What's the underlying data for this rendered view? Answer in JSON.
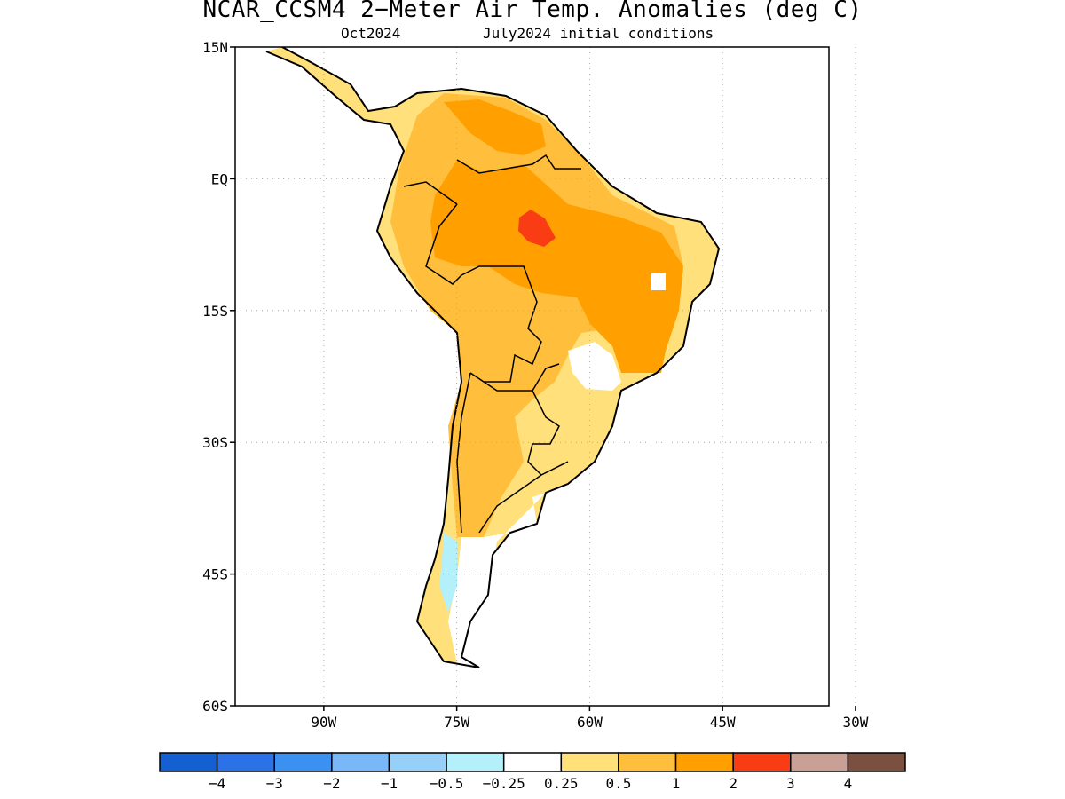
{
  "title": "NCAR_CCSM4 2−Meter Air Temp. Anomalies (deg C)",
  "subtitle_left": "Oct2024",
  "subtitle_right": "July2024 initial conditions",
  "map": {
    "region": "South America",
    "lon_range": [
      -100,
      -33
    ],
    "lat_range": [
      -60,
      15
    ],
    "x_ticks": [
      {
        "lon": -90,
        "label": "90W"
      },
      {
        "lon": -75,
        "label": "75W"
      },
      {
        "lon": -60,
        "label": "60W"
      },
      {
        "lon": -45,
        "label": "45W"
      },
      {
        "lon": -30,
        "label": "30W"
      }
    ],
    "y_ticks": [
      {
        "lat": 15,
        "label": "15N"
      },
      {
        "lat": 0,
        "label": "EQ"
      },
      {
        "lat": -15,
        "label": "15S"
      },
      {
        "lat": -30,
        "label": "30S"
      },
      {
        "lat": -45,
        "label": "45S"
      },
      {
        "lat": -60,
        "label": "60S"
      }
    ],
    "grid": "dotted"
  },
  "colorbar": {
    "colors": [
      "#1560d0",
      "#2a72e6",
      "#3c90f0",
      "#78b8f8",
      "#96d0f8",
      "#b4f0fa",
      "#ffffff",
      "#ffe07a",
      "#ffbe3c",
      "#ffa000",
      "#fa3c14",
      "#c8a096",
      "#7a5040"
    ],
    "labels": [
      "−4",
      "−3",
      "−2",
      "−1",
      "−0.5",
      "−0.25",
      "0.25",
      "0.5",
      "1",
      "2",
      "3",
      "4"
    ]
  }
}
